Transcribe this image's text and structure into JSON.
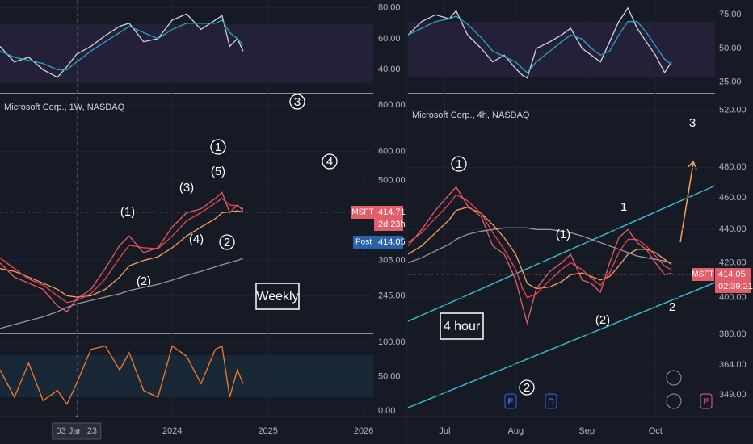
{
  "left": {
    "xlim": [
      2022.2,
      2026.1
    ],
    "xticks": [
      {
        "value": 2023.0,
        "label": "03 Jan '23"
      },
      2024,
      2025,
      2026
    ],
    "x": [
      2022.2,
      2022.35,
      2022.5,
      2022.65,
      2022.8,
      2022.9,
      2023.0,
      2023.15,
      2023.3,
      2023.45,
      2023.55,
      2023.7,
      2023.85,
      2024.0,
      2024.15,
      2024.3,
      2024.45,
      2024.52,
      2024.6,
      2024.68,
      2024.74
    ],
    "rsi": {
      "ylim": [
        25,
        85
      ],
      "yticks": [
        {
          "value": 80,
          "label": "80.00"
        },
        {
          "value": 60,
          "label": "60.00"
        },
        {
          "value": 40,
          "label": "40.00"
        }
      ],
      "series": [
        {
          "color": "#d1d4dc",
          "values": [
            55,
            45,
            48,
            40,
            35,
            42,
            50,
            55,
            62,
            68,
            70,
            58,
            60,
            72,
            76,
            66,
            72,
            75,
            55,
            60,
            52
          ]
        },
        {
          "color": "#26a5c9",
          "values": [
            52,
            48,
            46,
            44,
            40,
            40,
            45,
            52,
            58,
            64,
            68,
            64,
            60,
            66,
            70,
            70,
            70,
            72,
            64,
            60,
            56
          ]
        }
      ]
    },
    "price": {
      "title": "Microsoft Corp., 1W, NASDAQ",
      "log": true,
      "ylim": [
        195,
        849
      ],
      "yticks": [
        {
          "value": 800,
          "label": "800.00"
        },
        {
          "value": 600,
          "label": "600.00"
        },
        {
          "value": 500,
          "label": "500.00"
        },
        {
          "value": 305,
          "label": "305.00"
        },
        {
          "value": 245,
          "label": "245.00"
        }
      ],
      "series": [
        {
          "color": "#9598a1",
          "values": [
            200,
            205,
            210,
            215,
            222,
            228,
            233,
            238,
            243,
            248,
            253,
            258,
            263,
            270,
            278,
            285,
            293,
            297,
            301,
            305,
            309
          ]
        },
        {
          "color": "#f7a35c",
          "values": [
            290,
            285,
            275,
            265,
            255,
            245,
            243,
            245,
            255,
            275,
            295,
            305,
            312,
            330,
            355,
            375,
            395,
            410,
            412,
            415,
            412
          ]
        },
        {
          "color": "#e8474e",
          "values": [
            310,
            290,
            272,
            262,
            245,
            235,
            238,
            248,
            272,
            310,
            335,
            330,
            328,
            355,
            390,
            410,
            435,
            448,
            430,
            428,
            420
          ]
        },
        {
          "color": "#e35d6a",
          "values": [
            300,
            275,
            265,
            255,
            230,
            222,
            240,
            255,
            290,
            335,
            355,
            320,
            330,
            375,
            410,
            420,
            448,
            465,
            410,
            430,
            415
          ]
        }
      ],
      "annotations": [
        {
          "text": "3",
          "circled": true
        },
        {
          "text": "1",
          "circled": true
        },
        {
          "text": "(5)",
          "circled": false
        },
        {
          "text": "4",
          "circled": true
        },
        {
          "text": "(3)",
          "circled": false
        },
        {
          "text": "(1)",
          "circled": false
        },
        {
          "text": "(4)",
          "circled": false
        },
        {
          "text": "2",
          "circled": true
        },
        {
          "text": "(2)",
          "circled": false
        }
      ],
      "label_box": "Weekly",
      "tags": {
        "symbol": "MSFT",
        "price": "414.71",
        "countdown": "2d 23h",
        "post": "Post",
        "post_price": "414.05"
      }
    },
    "osc": {
      "ylim": [
        -7,
        111
      ],
      "yticks": [
        {
          "value": 100,
          "label": "100.00"
        },
        {
          "value": 50,
          "label": "50.00"
        },
        {
          "value": 0,
          "label": "0.00"
        }
      ],
      "series": [
        {
          "color": "#f57c2b",
          "values": [
            60,
            20,
            70,
            15,
            30,
            10,
            40,
            90,
            95,
            60,
            85,
            30,
            20,
            95,
            80,
            40,
            90,
            95,
            20,
            60,
            40
          ]
        }
      ]
    }
  },
  "right": {
    "xlim": [
      166,
      300
    ],
    "xticks": [
      {
        "value": 182,
        "label": "Jul"
      },
      {
        "value": 213,
        "label": "Aug"
      },
      {
        "value": 244,
        "label": "Sep"
      },
      {
        "value": 274,
        "label": "Oct"
      }
    ],
    "x": [
      166,
      172,
      178,
      184,
      187,
      192,
      198,
      203,
      208,
      213,
      216,
      218,
      222,
      228,
      233,
      237,
      242,
      246,
      250,
      254,
      258,
      262,
      266,
      270,
      274,
      278,
      281
    ],
    "rsi": {
      "ylim": [
        17,
        86
      ],
      "yticks": [
        {
          "value": 75,
          "label": "75.00"
        },
        {
          "value": 50,
          "label": "50.00"
        },
        {
          "value": 25,
          "label": "25.00"
        }
      ],
      "series": [
        {
          "color": "#d1d4dc",
          "values": [
            60,
            70,
            75,
            72,
            78,
            60,
            50,
            40,
            45,
            35,
            30,
            28,
            50,
            55,
            60,
            65,
            50,
            45,
            40,
            55,
            70,
            80,
            65,
            55,
            45,
            32,
            40
          ]
        },
        {
          "color": "#26a5c9",
          "values": [
            60,
            65,
            70,
            72,
            74,
            68,
            58,
            48,
            44,
            40,
            35,
            32,
            40,
            48,
            55,
            60,
            57,
            50,
            45,
            48,
            60,
            70,
            70,
            62,
            52,
            42,
            38
          ]
        }
      ]
    },
    "price": {
      "title": "Microsoft Corp., 4h, NASDAQ",
      "log": true,
      "ylim": [
        339,
        531
      ],
      "yticks": [
        {
          "value": 520,
          "label": "520.00"
        },
        {
          "value": 480,
          "label": "480.00"
        },
        {
          "value": 460,
          "label": "460.00"
        },
        {
          "value": 440,
          "label": "440.00"
        },
        {
          "value": 420,
          "label": "420.00"
        },
        {
          "value": 400,
          "label": "400.00"
        },
        {
          "value": 380,
          "label": "380.00"
        },
        {
          "value": 364,
          "label": "364.00"
        },
        {
          "value": 349,
          "label": "349.00"
        }
      ],
      "series": [
        {
          "color": "#9598a1",
          "values": [
            420,
            423,
            427,
            431,
            434,
            437,
            439,
            440,
            441,
            441,
            441,
            441,
            440,
            440,
            439,
            438,
            436,
            434,
            432,
            430,
            428,
            426,
            424,
            423,
            422,
            421,
            420
          ]
        },
        {
          "color": "#f7a35c",
          "values": [
            425,
            430,
            438,
            446,
            452,
            454,
            450,
            443,
            435,
            425,
            415,
            408,
            405,
            406,
            409,
            413,
            414,
            412,
            410,
            412,
            418,
            425,
            428,
            428,
            426,
            422,
            419
          ]
        },
        {
          "color": "#e8474e",
          "values": [
            432,
            438,
            447,
            456,
            462,
            458,
            450,
            438,
            428,
            416,
            405,
            400,
            402,
            410,
            416,
            420,
            416,
            411,
            407,
            414,
            426,
            434,
            434,
            430,
            424,
            418,
            416
          ]
        },
        {
          "color": "#e35d6a",
          "values": [
            430,
            440,
            452,
            462,
            467,
            455,
            448,
            430,
            425,
            410,
            395,
            386,
            405,
            415,
            420,
            425,
            410,
            408,
            403,
            420,
            435,
            440,
            432,
            428,
            420,
            413,
            414
          ]
        }
      ],
      "annotations": [
        {
          "text": "1",
          "circled": true
        },
        {
          "text": "3",
          "circled": false
        },
        {
          "text": "1",
          "circled": false
        },
        {
          "text": "(1)",
          "circled": false
        },
        {
          "text": "2",
          "circled": false
        },
        {
          "text": "(2)",
          "circled": false
        },
        {
          "text": "2",
          "circled": true
        }
      ],
      "label_box": "4 hour",
      "events": [
        "E",
        "D",
        "E"
      ],
      "tags": {
        "symbol": "MSFT",
        "price": "414.05",
        "countdown": "02:39:21"
      }
    }
  }
}
